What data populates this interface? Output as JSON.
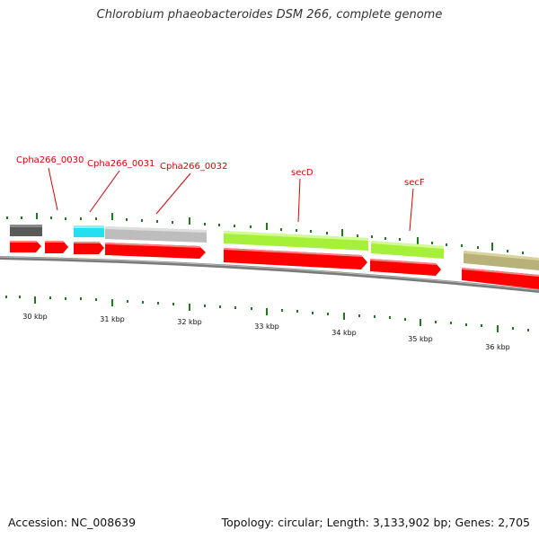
{
  "title": "Chlorobium phaeobacteroides DSM 266, complete genome",
  "footer": {
    "accession": "Accession: NC_008639",
    "summary": "Topology: circular; Length: 3,133,902 bp; Genes: 2,705"
  },
  "colors": {
    "cds_arrow": "#ff0000",
    "backbone": "#808080",
    "tick": "#1f7a1f",
    "label": "#e00000",
    "gene_dark_gray": "#5a5a5a",
    "gene_cyan": "#22e0f0",
    "gene_light_gray": "#bdbdbd",
    "gene_lime": "#a6f03a",
    "gene_khaki": "#b8b27a"
  },
  "gene_labels": [
    "Cpha266_0030",
    "Cpha266_0031",
    "Cpha266_0032",
    "secD",
    "secF"
  ],
  "kbp_labels": [
    "30 kbp",
    "31 kbp",
    "32 kbp",
    "33 kbp",
    "34 kbp",
    "35 kbp",
    "36 kbp"
  ]
}
